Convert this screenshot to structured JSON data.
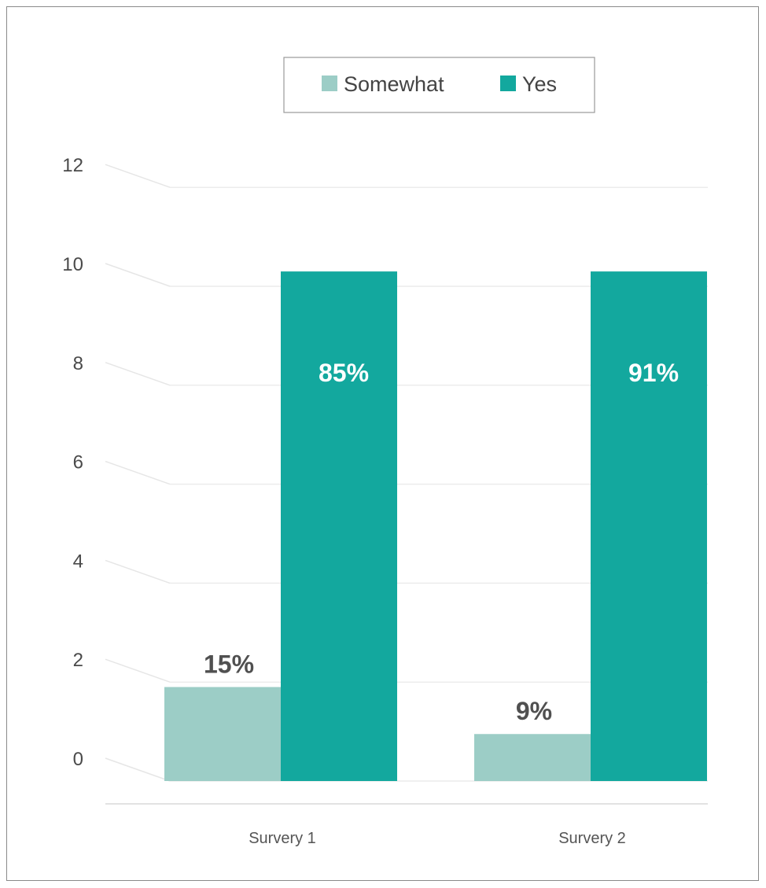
{
  "chart_data": {
    "type": "bar",
    "categories": [
      "Survery 1",
      "Survery 2"
    ],
    "series": [
      {
        "name": "Somewhat",
        "color": "#9ccdc6",
        "values": [
          1.9,
          0.95
        ],
        "labels": [
          "15%",
          "9%"
        ]
      },
      {
        "name": "Yes",
        "color": "#13a89e",
        "values": [
          10.3,
          10.3
        ],
        "labels": [
          "85%",
          "91%"
        ]
      }
    ],
    "ylim": [
      0,
      12
    ],
    "yticks": [
      0,
      2,
      4,
      6,
      8,
      10,
      12
    ],
    "ytick_labels": [
      "0",
      "2",
      "4",
      "6",
      "8",
      "10",
      "12"
    ],
    "grid": true,
    "legend": "top-center",
    "title": "",
    "xlabel": "",
    "ylabel": ""
  }
}
